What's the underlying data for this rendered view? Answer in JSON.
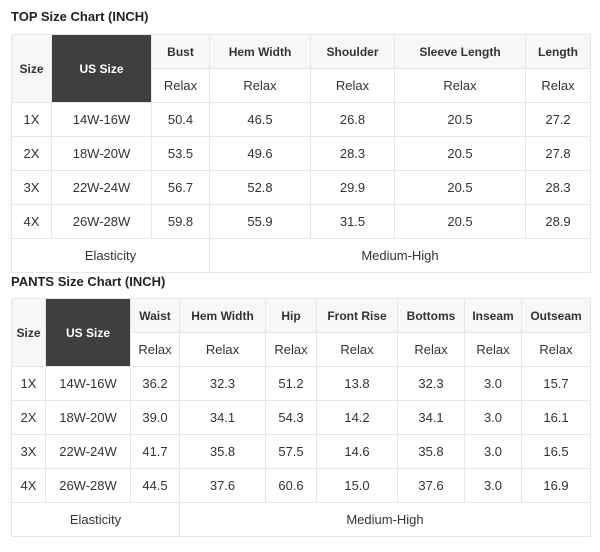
{
  "top": {
    "title": "TOP Size Chart (INCH)",
    "size_label": "Size",
    "us_size_label": "US Size",
    "columns": [
      "Bust",
      "Hem Width",
      "Shoulder",
      "Sleeve Length",
      "Length"
    ],
    "fit": [
      "Relax",
      "Relax",
      "Relax",
      "Relax",
      "Relax"
    ],
    "rows": [
      [
        "1X",
        "14W-16W",
        "50.4",
        "46.5",
        "26.8",
        "20.5",
        "27.2"
      ],
      [
        "2X",
        "18W-20W",
        "53.5",
        "49.6",
        "28.3",
        "20.5",
        "27.8"
      ],
      [
        "3X",
        "22W-24W",
        "56.7",
        "52.8",
        "29.9",
        "20.5",
        "28.3"
      ],
      [
        "4X",
        "26W-28W",
        "59.8",
        "55.9",
        "31.5",
        "20.5",
        "28.9"
      ]
    ],
    "elasticity_label": "Elasticity",
    "elasticity_value": "Medium-High"
  },
  "pants": {
    "title": "PANTS Size Chart (INCH)",
    "size_label": "Size",
    "us_size_label": "US Size",
    "columns": [
      "Waist",
      "Hem Width",
      "Hip",
      "Front Rise",
      "Bottoms",
      "Inseam",
      "Outseam"
    ],
    "fit": [
      "Relax",
      "Relax",
      "Relax",
      "Relax",
      "Relax",
      "Relax",
      "Relax"
    ],
    "rows": [
      [
        "1X",
        "14W-16W",
        "36.2",
        "32.3",
        "51.2",
        "13.8",
        "32.3",
        "3.0",
        "15.7"
      ],
      [
        "2X",
        "18W-20W",
        "39.0",
        "34.1",
        "54.3",
        "14.2",
        "34.1",
        "3.0",
        "16.1"
      ],
      [
        "3X",
        "22W-24W",
        "41.7",
        "35.8",
        "57.5",
        "14.6",
        "35.8",
        "3.0",
        "16.5"
      ],
      [
        "4X",
        "26W-28W",
        "44.5",
        "37.6",
        "60.6",
        "15.0",
        "37.6",
        "3.0",
        "16.9"
      ]
    ],
    "elasticity_label": "Elasticity",
    "elasticity_value": "Medium-High"
  }
}
